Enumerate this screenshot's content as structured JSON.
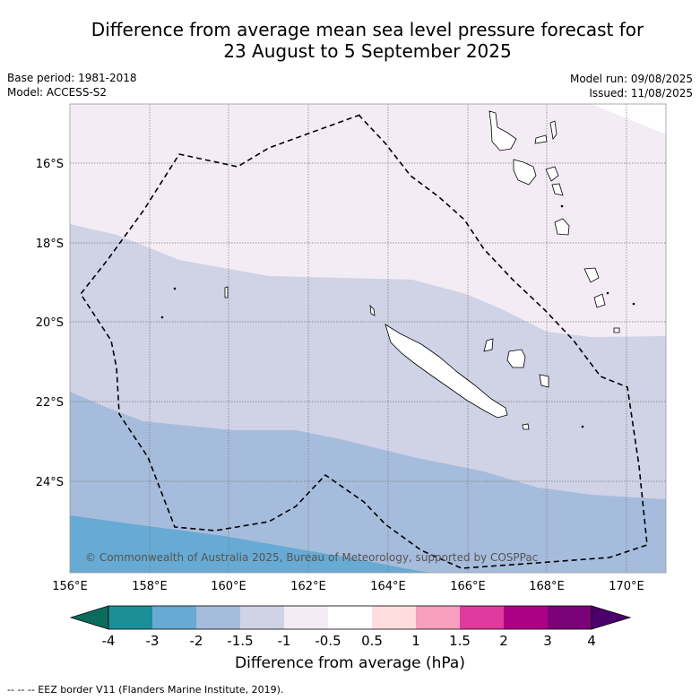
{
  "title_line1": "Difference from average mean sea level pressure forecast for",
  "title_line2": "23 August to 5 September 2025",
  "base_period": "Base period: 1981-2018",
  "model": "Model: ACCESS-S2",
  "model_run": "Model run: 09/08/2025",
  "issued": "Issued: 11/08/2025",
  "copyright": "© Commonwealth of Australia 2025, Bureau of Meteorology, supported by COSPPac",
  "lat_labels": [
    "16°S",
    "18°S",
    "20°S",
    "22°S",
    "24°S"
  ],
  "lon_labels": [
    "156°E",
    "158°E",
    "160°E",
    "162°E",
    "164°E",
    "166°E",
    "168°E",
    "170°E"
  ],
  "colorbar": {
    "label": "Difference from average (hPa)",
    "ticks": [
      "-4",
      "-3",
      "-2",
      "-1.5",
      "-1",
      "-0.5",
      "0.5",
      "1",
      "1.5",
      "2",
      "3",
      "4"
    ],
    "colors": [
      "#1a9096",
      "#67aad3",
      "#a6bcdc",
      "#d0d2e6",
      "#f3ecf5",
      "#ffffff",
      "#ffdcdd",
      "#f79fbd",
      "#df3a9e",
      "#ad0185",
      "#7b0179"
    ],
    "under_color": "#0b6c5e",
    "over_color": "#4b016b"
  },
  "fill_colors": {
    "minus_05_to_minus_1": "#f3ecf5",
    "minus_1_to_minus_15": "#d0d2e6",
    "minus_15_to_minus_2": "#a6bcdc",
    "minus_2_to_minus_3": "#67aad3"
  },
  "legend_footer": "--  --  -- EEZ border V11 (Flanders Marine Institute, 2019)."
}
